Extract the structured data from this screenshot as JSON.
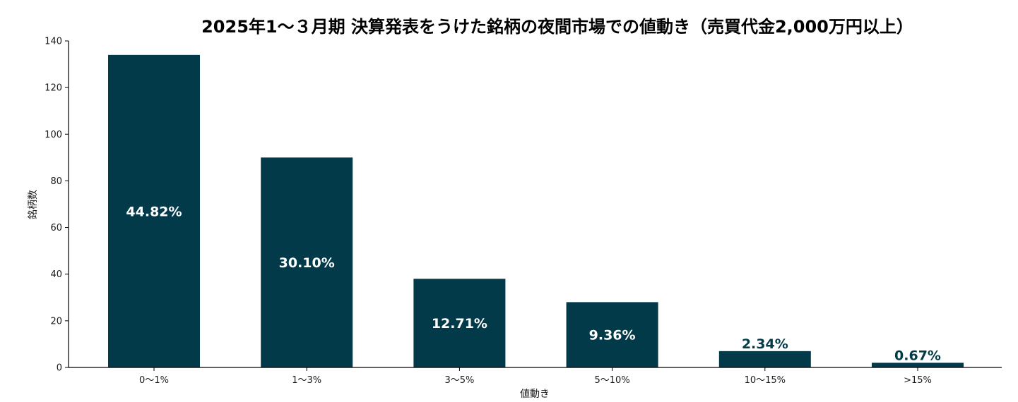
{
  "chart_data": {
    "type": "bar",
    "title": "2025年1～３月期 決算発表をうけた銘柄の夜間市場での値動き（売買代金2,000万円以上）",
    "xlabel": "値動き",
    "ylabel": "銘柄数",
    "categories": [
      "0〜1%",
      "1〜3%",
      "3〜5%",
      "5〜10%",
      "10〜15%",
      ">15%"
    ],
    "values": [
      134,
      90,
      38,
      28,
      7,
      2
    ],
    "data_labels": [
      "44.82%",
      "30.10%",
      "12.71%",
      "9.36%",
      "2.34%",
      "0.67%"
    ],
    "ylim": [
      0,
      140
    ],
    "yticks": [
      0,
      20,
      40,
      60,
      80,
      100,
      120,
      140
    ],
    "grid": false,
    "legend": "none",
    "colors": {
      "bar": "#023a4a",
      "label_inside": "#ffffff",
      "label_outside": "#023a4a",
      "axis": "#000000"
    }
  }
}
